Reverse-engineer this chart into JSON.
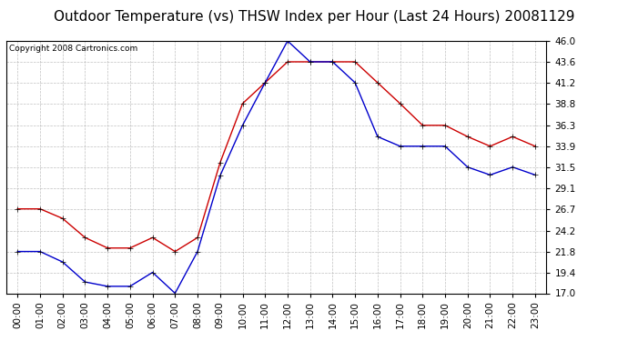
{
  "title": "Outdoor Temperature (vs) THSW Index per Hour (Last 24 Hours) 20081129",
  "copyright": "Copyright 2008 Cartronics.com",
  "hours": [
    "00:00",
    "01:00",
    "02:00",
    "03:00",
    "04:00",
    "05:00",
    "06:00",
    "07:00",
    "08:00",
    "09:00",
    "10:00",
    "11:00",
    "12:00",
    "13:00",
    "14:00",
    "15:00",
    "16:00",
    "17:00",
    "18:00",
    "19:00",
    "20:00",
    "21:00",
    "22:00",
    "23:00"
  ],
  "red_data": [
    26.7,
    26.7,
    25.6,
    23.4,
    22.2,
    22.2,
    23.4,
    21.8,
    23.4,
    32.0,
    38.8,
    41.2,
    43.6,
    43.6,
    43.6,
    43.6,
    41.2,
    38.8,
    36.3,
    36.3,
    35.0,
    33.9,
    35.0,
    33.9
  ],
  "blue_data": [
    21.8,
    21.8,
    20.6,
    18.3,
    17.8,
    17.8,
    19.4,
    17.0,
    21.8,
    30.5,
    36.3,
    41.2,
    46.0,
    43.6,
    43.6,
    41.2,
    35.0,
    33.9,
    33.9,
    33.9,
    31.5,
    30.6,
    31.5,
    30.6
  ],
  "red_color": "#cc0000",
  "blue_color": "#0000cc",
  "bg_color": "#ffffff",
  "plot_bg_color": "#ffffff",
  "grid_color": "#b0b0b0",
  "yticks": [
    17.0,
    19.4,
    21.8,
    24.2,
    26.7,
    29.1,
    31.5,
    33.9,
    36.3,
    38.8,
    41.2,
    43.6,
    46.0
  ],
  "ymin": 17.0,
  "ymax": 46.0,
  "title_fontsize": 11,
  "copyright_fontsize": 6.5,
  "tick_fontsize": 7.5,
  "marker_size": 3,
  "line_width": 1.0
}
